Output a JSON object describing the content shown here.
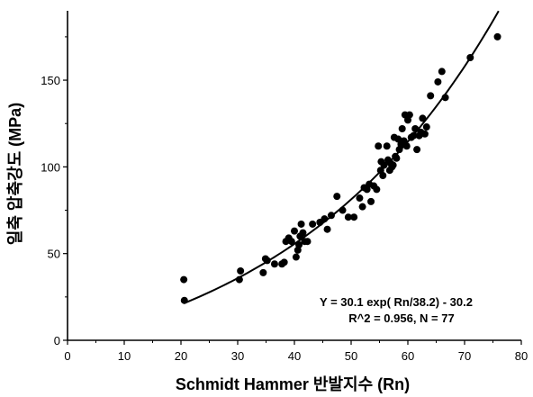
{
  "chart_data": {
    "type": "scatter",
    "title": "",
    "xlabel": "Schmidt Hammer 반발지수 (Rn)",
    "ylabel": "일축 압축강도 (MPa)",
    "xlim": [
      0,
      80
    ],
    "ylim": [
      0,
      190
    ],
    "xticks": [
      0,
      10,
      20,
      30,
      40,
      50,
      60,
      70,
      80
    ],
    "yticks": [
      0,
      50,
      100,
      150
    ],
    "grid": false,
    "legend": "none",
    "marker_color": "#000000",
    "points": {
      "x": [
        20.5,
        20.6,
        30.3,
        30.5,
        34.5,
        34.9,
        35.2,
        36.5,
        37.8,
        38.2,
        38.5,
        39.0,
        39.5,
        40.0,
        40.3,
        40.6,
        40.8,
        41.0,
        41.2,
        41.5,
        41.8,
        42.3,
        43.2,
        44.5,
        45.3,
        45.8,
        46.5,
        47.5,
        48.5,
        49.5,
        50.5,
        51.5,
        52.0,
        52.3,
        52.8,
        53.2,
        53.5,
        54.0,
        54.5,
        54.8,
        55.2,
        55.3,
        55.6,
        55.8,
        56.3,
        56.5,
        56.8,
        57.0,
        57.2,
        57.4,
        57.6,
        57.8,
        58.0,
        58.3,
        58.5,
        58.8,
        59.0,
        59.3,
        59.5,
        59.8,
        60.0,
        60.3,
        60.6,
        61.0,
        61.3,
        61.6,
        62.0,
        62.3,
        62.6,
        63.0,
        63.3,
        64.0,
        65.3,
        66.0,
        66.6,
        71.0,
        75.8
      ],
      "y": [
        35,
        23,
        35,
        40,
        39,
        47,
        46,
        44,
        44,
        45,
        57,
        59,
        57,
        63,
        48,
        52,
        55,
        60,
        67,
        62,
        57,
        57,
        67,
        68,
        70,
        64,
        72,
        83,
        75,
        71,
        71,
        82,
        77,
        88,
        87,
        90,
        80,
        89,
        87,
        112,
        98,
        103,
        95,
        101,
        112,
        104,
        98,
        102,
        100,
        101,
        117,
        106,
        105,
        116,
        110,
        113,
        122,
        115,
        130,
        112,
        127,
        130,
        117,
        118,
        122,
        110,
        118,
        120,
        128,
        119,
        123,
        141,
        149,
        155,
        140,
        163,
        175
      ]
    },
    "fit": {
      "type": "line",
      "equation": "Y = 30.1 exp( Rn/38.2) - 30.2",
      "stats": "R^2 = 0.956,   N = 77",
      "a": 30.1,
      "b": 38.2,
      "c": -30.2,
      "x_range": [
        20.5,
        76.0
      ],
      "line_color": "#000000"
    }
  }
}
